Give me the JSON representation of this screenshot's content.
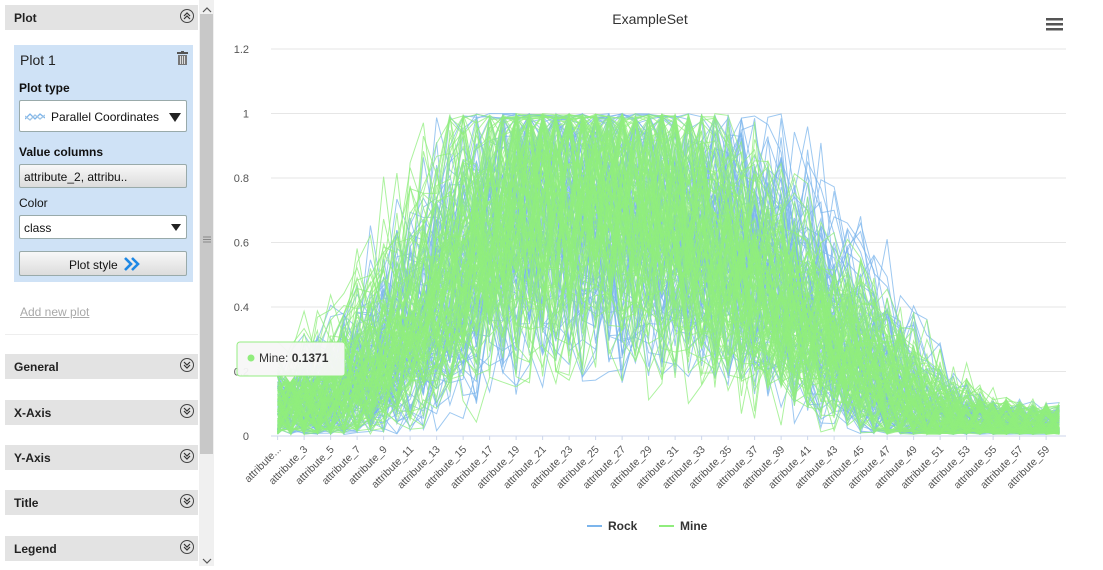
{
  "left_panel": {
    "plot_section": {
      "label": "Plot"
    },
    "plot_card": {
      "title": "Plot 1",
      "plot_type_label": "Plot type",
      "plot_type_value": "Parallel Coordinates",
      "value_columns_label": "Value columns",
      "value_columns_value": "attribute_2, attribu..",
      "color_label": "Color",
      "color_value": "class",
      "plot_style_label": "Plot style"
    },
    "add_new_plot": "Add new plot",
    "sections": [
      {
        "label": "General"
      },
      {
        "label": "X-Axis"
      },
      {
        "label": "Y-Axis"
      },
      {
        "label": "Title"
      },
      {
        "label": "Legend"
      }
    ]
  },
  "colors": {
    "rock": "#7cb5ec",
    "mine": "#90ed7d",
    "panel_blue": "#cfe2f6"
  },
  "tooltip": {
    "series": "Mine",
    "separator": ": ",
    "value": "0.1371"
  },
  "menu_icon": "hamburger-menu-icon",
  "chart_data": {
    "type": "line",
    "subtype": "parallel-coordinates",
    "title": "ExampleSet",
    "xlabel": "",
    "ylabel": "",
    "ylim": [
      0,
      1.2
    ],
    "y_ticks": [
      "0",
      "0.2",
      "0.4",
      "0.6",
      "0.8",
      "1",
      "1.2"
    ],
    "x_tick_labels": [
      "attribute...",
      "attribute_3",
      "attribute_5",
      "attribute_7",
      "attribute_9",
      "attribute_11",
      "attribute_13",
      "attribute_15",
      "attribute_17",
      "attribute_19",
      "attribute_21",
      "attribute_23",
      "attribute_25",
      "attribute_27",
      "attribute_29",
      "attribute_31",
      "attribute_33",
      "attribute_35",
      "attribute_37",
      "attribute_39",
      "attribute_41",
      "attribute_43",
      "attribute_45",
      "attribute_47",
      "attribute_49",
      "attribute_51",
      "attribute_53",
      "attribute_55",
      "attribute_57",
      "attribute_59"
    ],
    "num_attributes": 60,
    "series": [
      {
        "name": "Rock",
        "color": "#7cb5ec",
        "mean_profile": [
          0.07,
          0.07,
          0.08,
          0.09,
          0.11,
          0.14,
          0.17,
          0.19,
          0.22,
          0.26,
          0.31,
          0.36,
          0.41,
          0.46,
          0.52,
          0.58,
          0.63,
          0.67,
          0.71,
          0.73,
          0.74,
          0.74,
          0.73,
          0.72,
          0.71,
          0.7,
          0.69,
          0.68,
          0.66,
          0.64,
          0.62,
          0.61,
          0.6,
          0.6,
          0.6,
          0.59,
          0.57,
          0.54,
          0.5,
          0.45,
          0.41,
          0.37,
          0.32,
          0.28,
          0.23,
          0.19,
          0.14,
          0.1,
          0.07,
          0.05,
          0.03,
          0.025,
          0.02,
          0.018,
          0.016,
          0.015,
          0.014,
          0.013,
          0.013,
          0.012
        ]
      },
      {
        "name": "Mine",
        "color": "#90ed7d",
        "mean_profile": [
          0.08,
          0.08,
          0.09,
          0.1,
          0.13,
          0.16,
          0.19,
          0.22,
          0.26,
          0.3,
          0.35,
          0.4,
          0.45,
          0.5,
          0.56,
          0.61,
          0.65,
          0.69,
          0.72,
          0.74,
          0.76,
          0.77,
          0.77,
          0.77,
          0.76,
          0.75,
          0.74,
          0.73,
          0.71,
          0.68,
          0.65,
          0.62,
          0.59,
          0.56,
          0.53,
          0.5,
          0.47,
          0.44,
          0.41,
          0.37,
          0.34,
          0.31,
          0.28,
          0.25,
          0.22,
          0.19,
          0.15,
          0.12,
          0.09,
          0.06,
          0.04,
          0.03,
          0.025,
          0.02,
          0.018,
          0.016,
          0.015,
          0.014,
          0.013,
          0.013
        ]
      }
    ],
    "legend_position": "bottom-center",
    "grid": true
  }
}
